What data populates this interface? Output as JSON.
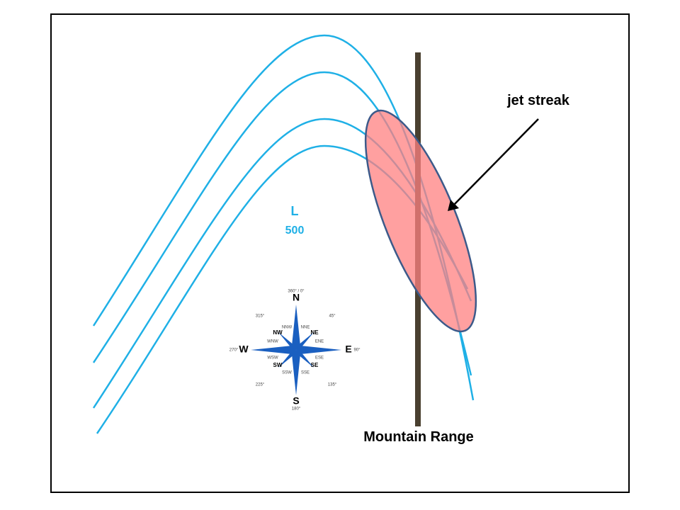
{
  "labels": {
    "jet_streak": "jet streak",
    "mountain_range": "Mountain Range",
    "low": "L",
    "low_value": "500"
  },
  "compass": {
    "n": "N",
    "s": "S",
    "e": "E",
    "w": "W",
    "ne": "NE",
    "nw": "NW",
    "se": "SE",
    "sw": "SW",
    "nne": "NNE",
    "nnw": "NNW",
    "ene": "ENE",
    "ese": "ESE",
    "sse": "SSE",
    "ssw": "SSW",
    "wsw": "WSW",
    "wnw": "WNW",
    "deg_0": "360° / 0°",
    "deg_45": "45°",
    "deg_90": "90°",
    "deg_135": "135°",
    "deg_180": "180°",
    "deg_225": "225°",
    "deg_270": "270°",
    "deg_315": "315°"
  }
}
